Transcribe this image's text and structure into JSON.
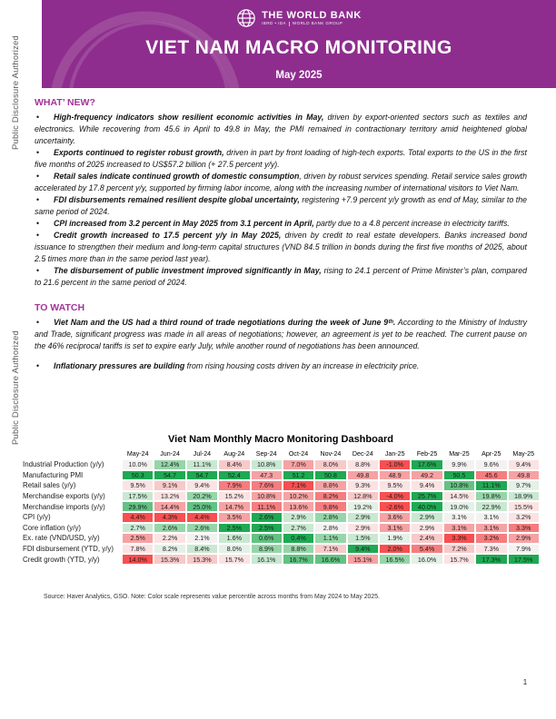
{
  "watermark": {
    "text": "Public Disclosure Authorized"
  },
  "banner": {
    "background_color": "#8e2d8e",
    "logo_title": "THE WORLD BANK",
    "logo_sub_left": "IBRD • IDA",
    "logo_sub_right": "WORLD BANK GROUP",
    "title": "VIET NAM MACRO MONITORING",
    "date": "May 2025"
  },
  "accent_colors": {
    "section_heading": "#a43399",
    "banner_purple": "#8e2d8e"
  },
  "whats_new": {
    "heading": "WHAT’ NEW?",
    "bullets": [
      {
        "lead": "High-frequency indicators show resilient economic activities in May,",
        "rest": " driven by export-oriented sectors such as textiles and electronics. While recovering from 45.6 in April to 49.8 in May, the PMI remained in contractionary territory amid heightened global uncertainty."
      },
      {
        "lead": "Exports continued to register robust growth,",
        "rest": " driven in part by front loading of high-tech exports. Total exports to the US in the first five months of 2025 increased to US$57.2 billion (+ 27.5 percent y/y)."
      },
      {
        "lead": "Retail sales indicate continued growth of domestic consumption",
        "rest": ", driven by robust services spending. Retail service sales growth accelerated by 17.8 percent y/y, supported by firming labor income, along with the increasing number of international visitors to Viet Nam."
      },
      {
        "lead": "FDI disbursements remained resilient despite global uncertainty,",
        "rest": " registering +7.9 percent y/y growth as end of May, similar to the same period of 2024."
      },
      {
        "lead": "CPI increased from 3.2 percent in May 2025 from 3.1 percent in April,",
        "rest": " partly due to a 4.8 percent increase in electricity tariffs."
      },
      {
        "lead": "Credit growth increased to 17.5 percent y/y in May 2025,",
        "rest": " driven by credit to real estate developers. Banks increased bond issuance to strengthen their medium and long-term capital structures (VND 84.5 trillion in bonds during the first five months of 2025, about 2.5 times more than in the same period last year)."
      },
      {
        "lead": "The disbursement of public investment improved significantly in May,",
        "rest": " rising to 24.1 percent of Prime Minister’s plan, compared to 21.6 percent in the same period of 2024."
      }
    ]
  },
  "to_watch": {
    "heading": "TO WATCH",
    "bullets": [
      {
        "lead": "Viet Nam and the US had a third round of trade negotiations during the week of June 9ᵗʰ.",
        "rest": " According to the Ministry of Industry and Trade, significant progress was made in all areas of negotiations; however, an agreement is yet to be reached. The current pause on the 46% reciprocal tariffs is set to expire early July, while another round of negotiations has been announced."
      },
      {
        "lead": "Inflationary pressures are building",
        "rest": " from rising housing costs driven by an increase in electricity price."
      }
    ]
  },
  "dashboard": {
    "title": "Viet Nam Monthly Macro Monitoring Dashboard",
    "type": "heatmap",
    "months": [
      "May-24",
      "Jun-24",
      "Jul-24",
      "Aug-24",
      "Sep-24",
      "Oct-24",
      "Nov-24",
      "Dec-24",
      "Jan-25",
      "Feb-25",
      "Mar-25",
      "Apr-25",
      "May-25"
    ],
    "palette": {
      "G4": "#1fa953",
      "G3": "#63c283",
      "G2": "#95d6a8",
      "G1": "#c9e8d1",
      "G0": "#e3f1e7",
      "W": "#f4f2f1",
      "P0": "#fbe3e3",
      "P1": "#f8c9c9",
      "P2": "#f6a2a3",
      "P3": "#f57d7f",
      "P4": "#f84f50"
    },
    "rows": [
      {
        "label": "Industrial Production (y/y)",
        "values": [
          "10.0%",
          "12.4%",
          "11.1%",
          "8.4%",
          "10.8%",
          "7.0%",
          "8.0%",
          "8.8%",
          "-1.0%",
          "17.6%",
          "9.9%",
          "9.6%",
          "9.4%"
        ],
        "colors": [
          "W",
          "G2",
          "G1",
          "P1",
          "G1",
          "P2",
          "P1",
          "P0",
          "P4",
          "G4",
          "W",
          "W",
          "P0"
        ]
      },
      {
        "label": "Manufacturing PMI",
        "values": [
          "50.3",
          "54.7",
          "54.7",
          "52.4",
          "47.3",
          "51.2",
          "50.8",
          "49.8",
          "48.9",
          "49.2",
          "50.5",
          "45.6",
          "49.8"
        ],
        "colors": [
          "G4",
          "G4",
          "G4",
          "G4",
          "P2",
          "G4",
          "G4",
          "P2",
          "P2",
          "P2",
          "G4",
          "P3",
          "P2"
        ]
      },
      {
        "label": "Retail sales (y/y)",
        "values": [
          "9.5%",
          "9.1%",
          "9.4%",
          "7.9%",
          "7.6%",
          "7.1%",
          "8.8%",
          "9.3%",
          "9.5%",
          "9.4%",
          "10.8%",
          "11.1%",
          "9.7%"
        ],
        "colors": [
          "P0",
          "P1",
          "P0",
          "P3",
          "P3",
          "P4",
          "P2",
          "P0",
          "P0",
          "P0",
          "G3",
          "G4",
          "G0"
        ]
      },
      {
        "label": "Merchandise exports (y/y)",
        "values": [
          "17.5%",
          "13.2%",
          "20.2%",
          "15.2%",
          "10.8%",
          "10.2%",
          "8.2%",
          "12.8%",
          "-4.0%",
          "25.7%",
          "14.5%",
          "19.8%",
          "18.9%"
        ],
        "colors": [
          "G1",
          "P0",
          "G2",
          "P0",
          "P2",
          "P2",
          "P3",
          "P1",
          "P4",
          "G4",
          "P0",
          "G2",
          "G1"
        ]
      },
      {
        "label": "Merchandise imports (y/y)",
        "values": [
          "29.9%",
          "14.4%",
          "25.0%",
          "14.7%",
          "11.1%",
          "13.6%",
          "9.8%",
          "19.2%",
          "-2.6%",
          "40.0%",
          "19.0%",
          "22.9%",
          "15.5%"
        ],
        "colors": [
          "G3",
          "P2",
          "G3",
          "P2",
          "P3",
          "P2",
          "P3",
          "G0",
          "P4",
          "G4",
          "G0",
          "G1",
          "P0"
        ]
      },
      {
        "label": "CPI (y/y)",
        "values": [
          "4.4%",
          "4.3%",
          "4.4%",
          "3.5%",
          "2.6%",
          "2.9%",
          "2.8%",
          "2.9%",
          "3.6%",
          "2.9%",
          "3.1%",
          "3.1%",
          "3.2%"
        ],
        "colors": [
          "P4",
          "P4",
          "P4",
          "P2",
          "G4",
          "G1",
          "G2",
          "G1",
          "P2",
          "G1",
          "W",
          "W",
          "P0"
        ]
      },
      {
        "label": "Core inflation (y/y)",
        "values": [
          "2.7%",
          "2.6%",
          "2.6%",
          "2.5%",
          "2.5%",
          "2.7%",
          "2.8%",
          "2.9%",
          "3.1%",
          "2.9%",
          "3.1%",
          "3.1%",
          "3.3%"
        ],
        "colors": [
          "G1",
          "G2",
          "G2",
          "G4",
          "G4",
          "G1",
          "W",
          "P0",
          "P2",
          "P0",
          "P2",
          "P2",
          "P3"
        ]
      },
      {
        "label": "Ex. rate (VND/USD, y/y)",
        "values": [
          "2.5%",
          "2.2%",
          "2.1%",
          "1.6%",
          "0.6%",
          "0.4%",
          "1.1%",
          "1.5%",
          "1.9%",
          "2.4%",
          "3.3%",
          "3.2%",
          "2.9%"
        ],
        "colors": [
          "P2",
          "P0",
          "W",
          "G1",
          "G3",
          "G4",
          "G2",
          "G1",
          "G0",
          "P1",
          "P4",
          "P3",
          "P2"
        ]
      },
      {
        "label": "FDI disbursement (YTD, y/y)",
        "values": [
          "7.8%",
          "8.2%",
          "8.4%",
          "8.0%",
          "8.9%",
          "8.8%",
          "7.1%",
          "9.4%",
          "2.0%",
          "5.4%",
          "7.2%",
          "7.3%",
          "7.9%"
        ],
        "colors": [
          "P0",
          "G0",
          "G1",
          "G0",
          "G2",
          "G2",
          "P1",
          "G4",
          "P4",
          "P3",
          "P1",
          "P0",
          "W"
        ]
      },
      {
        "label": "Credit growth (YTD, y/y)",
        "values": [
          "14.0%",
          "15.3%",
          "15.3%",
          "15.7%",
          "16.1%",
          "16.7%",
          "16.6%",
          "15.1%",
          "16.5%",
          "16.0%",
          "15.7%",
          "17.3%",
          "17.5%"
        ],
        "colors": [
          "P4",
          "P1",
          "P1",
          "P0",
          "G1",
          "G3",
          "G3",
          "P2",
          "G2",
          "G0",
          "P0",
          "G4",
          "G4"
        ]
      }
    ]
  },
  "footer": {
    "source_note": "Source: Haver Analytics, GSO. Note: Color scale represents value percentile across months from May 2024 to May 2025.",
    "page_number": "1"
  }
}
